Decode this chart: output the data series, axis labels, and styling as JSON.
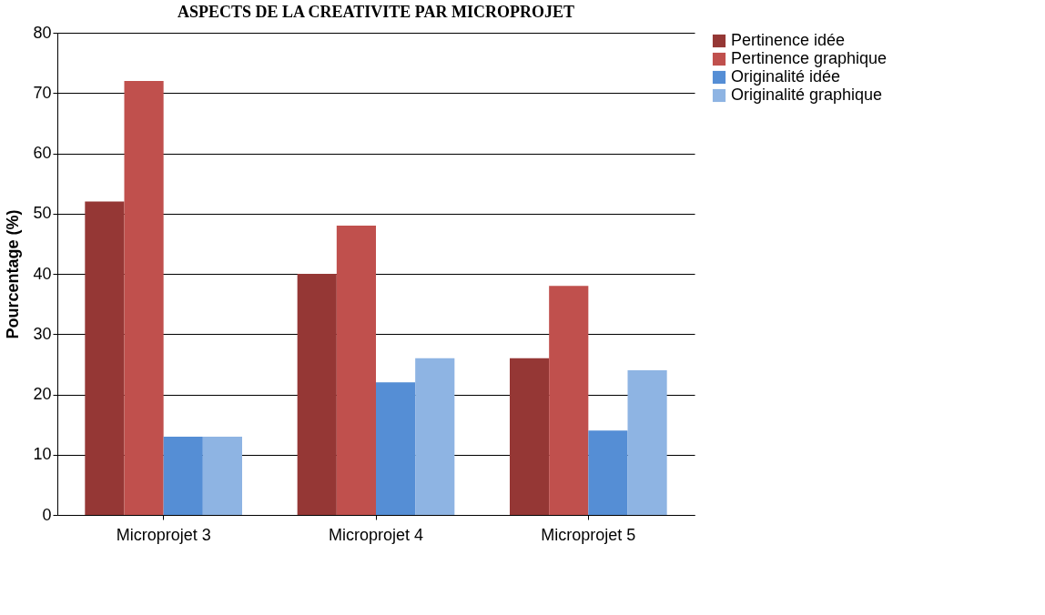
{
  "chart_data": {
    "type": "bar",
    "title": "ASPECTS DE LA CREATIVITE PAR MICROPROJET",
    "ylabel": "Pourcentage (%)",
    "categories": [
      "Microprojet 3",
      "Microprojet 4",
      "Microprojet 5"
    ],
    "series": [
      {
        "name": "Pertinence idée",
        "color": "#953735",
        "values": [
          52,
          40,
          26
        ]
      },
      {
        "name": "Pertinence graphique",
        "color": "#c0504d",
        "values": [
          72,
          48,
          38
        ]
      },
      {
        "name": "Originalité idée",
        "color": "#558ed5",
        "values": [
          13,
          22,
          14
        ]
      },
      {
        "name": "Originalité graphique",
        "color": "#8eb4e3",
        "values": [
          13,
          26,
          24
        ]
      }
    ],
    "ylim": [
      0,
      80
    ],
    "yticks": [
      0,
      10,
      20,
      30,
      40,
      50,
      60,
      70,
      80
    ],
    "grid": "y",
    "legend": "right"
  }
}
